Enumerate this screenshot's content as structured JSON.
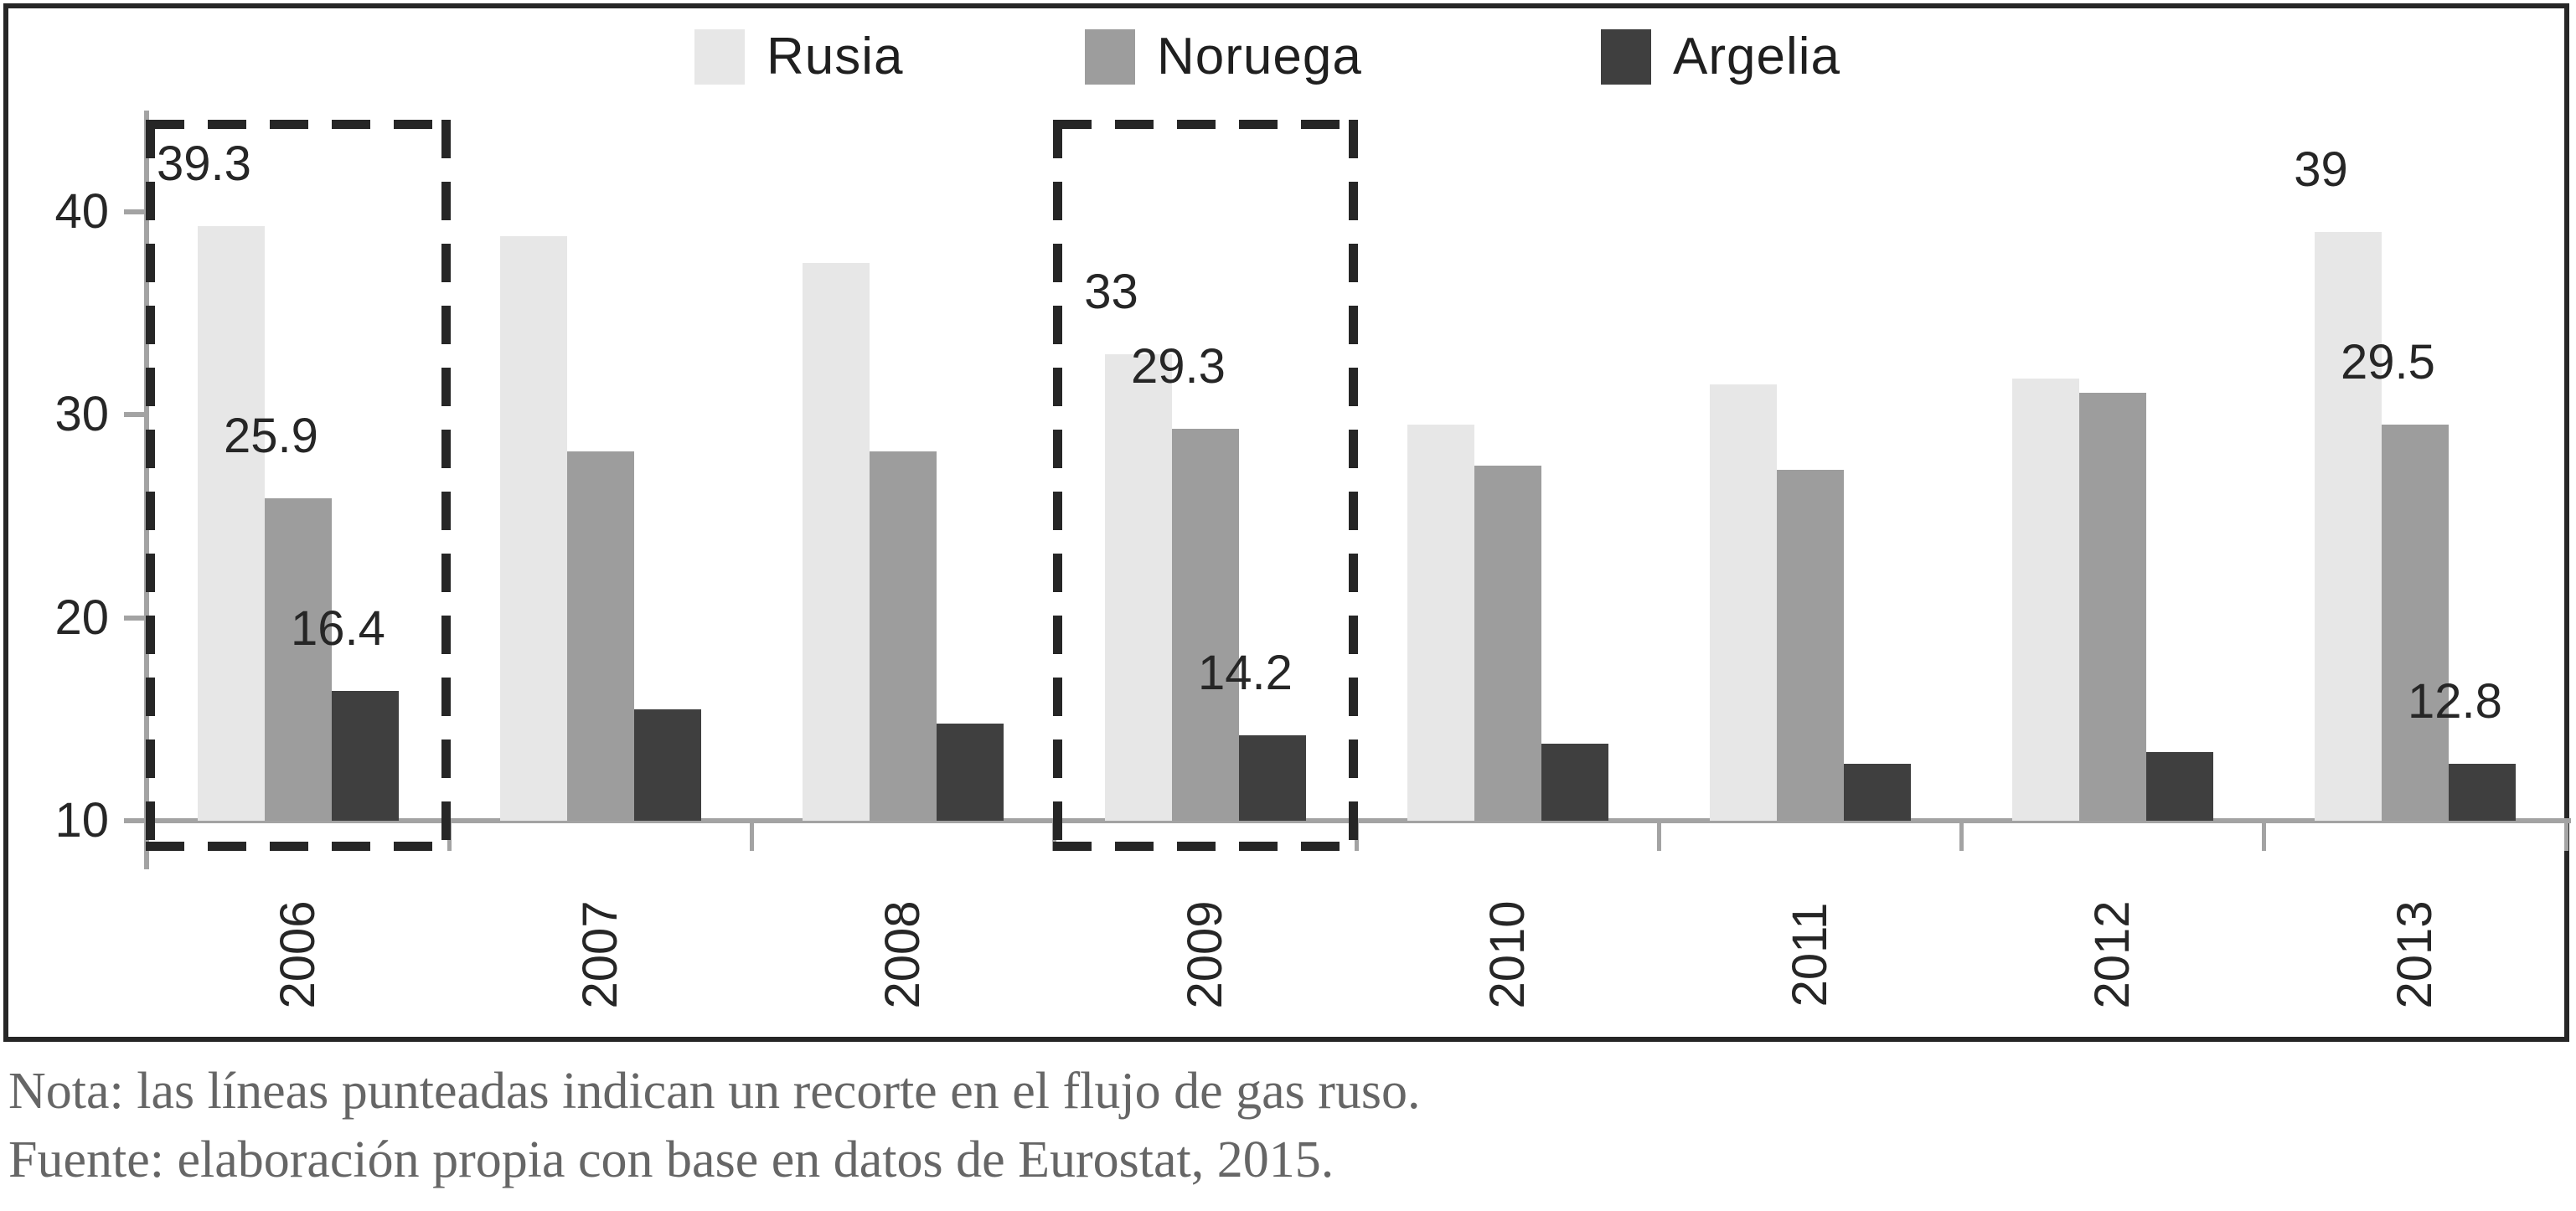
{
  "chart_data": {
    "type": "bar",
    "title": "",
    "xlabel": "",
    "ylabel": "",
    "categories": [
      "2006",
      "2007",
      "2008",
      "2009",
      "2010",
      "2011",
      "2012",
      "2013"
    ],
    "series": [
      {
        "name": "Rusia",
        "color": "#e7e7e7",
        "values": [
          39.3,
          38.8,
          37.5,
          33,
          29.5,
          31.5,
          31.8,
          39
        ],
        "labels": [
          "39.3",
          null,
          null,
          "33",
          null,
          null,
          null,
          "39"
        ]
      },
      {
        "name": "Noruega",
        "color": "#9d9d9d",
        "values": [
          25.9,
          28.2,
          28.2,
          29.3,
          27.5,
          27.3,
          31.1,
          29.5
        ],
        "labels": [
          "25.9",
          null,
          null,
          "29.3",
          null,
          null,
          null,
          "29.5"
        ]
      },
      {
        "name": "Argelia",
        "color": "#3f3f3f",
        "values": [
          16.4,
          15.5,
          14.8,
          14.2,
          13.8,
          12.8,
          13.4,
          12.8
        ],
        "labels": [
          "16.4",
          null,
          null,
          "14.2",
          null,
          null,
          null,
          "12.8"
        ]
      }
    ],
    "ylim": [
      10,
      44.5
    ],
    "yticks": [
      "10",
      "20",
      "30",
      "40"
    ],
    "grid": false,
    "legend_position": "top",
    "annotations": {
      "dashed_box_years": [
        "2006",
        "2009"
      ],
      "meaning": "recorte en el flujo de gas ruso"
    }
  },
  "notes": {
    "line1": "Nota: las líneas punteadas indican un recorte en el flujo de gas ruso.",
    "line2": "Fuente: elaboración propia con base en datos de Eurostat, 2015."
  }
}
